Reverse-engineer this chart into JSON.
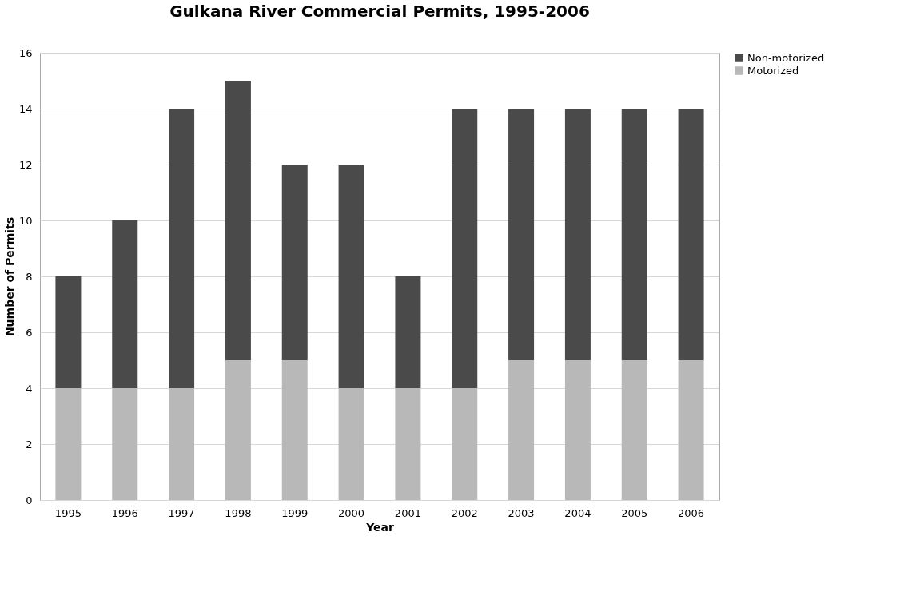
{
  "chart_data": {
    "type": "bar",
    "title": "Gulkana River Commercial Permits, 1995-2006",
    "xlabel": "Year",
    "ylabel": "Number of Permits",
    "categories": [
      "1995",
      "1996",
      "1997",
      "1998",
      "1999",
      "2000",
      "2001",
      "2002",
      "2003",
      "2004",
      "2005",
      "2006"
    ],
    "stacked": true,
    "series": [
      {
        "name": "Motorized",
        "color": "#b8b8b8",
        "values": [
          4,
          4,
          4,
          5,
          5,
          4,
          4,
          4,
          5,
          5,
          5,
          5
        ]
      },
      {
        "name": "Non-motorized",
        "color": "#4a4a4a",
        "values": [
          4,
          6,
          10,
          10,
          7,
          8,
          4,
          10,
          9,
          9,
          9,
          9
        ]
      }
    ],
    "ylim": [
      0,
      16
    ],
    "yticks": [
      0,
      2,
      4,
      6,
      8,
      10,
      12,
      14,
      16
    ],
    "grid": "y",
    "legend": "right"
  }
}
